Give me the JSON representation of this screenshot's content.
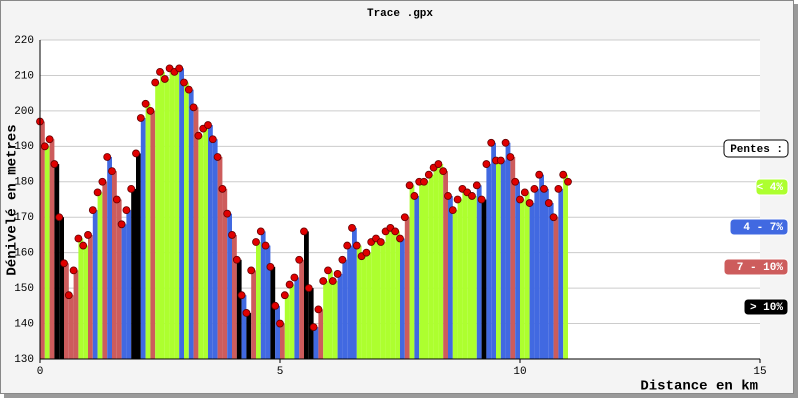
{
  "chart_data": {
    "type": "elevation-profile",
    "title": "Trace .gpx",
    "y_label": "Dénivelé en metres",
    "x_label": "Distance en km",
    "xlim": [
      0,
      15
    ],
    "xticks": [
      0,
      5,
      10,
      15
    ],
    "ylim": [
      130,
      220
    ],
    "yticks": [
      130,
      140,
      150,
      160,
      170,
      180,
      190,
      200,
      210,
      220
    ],
    "grid": true,
    "point_color": "#e00000",
    "legend": {
      "title": "Pentes :",
      "items": [
        {
          "label": "< 4%",
          "color": "#adff2f"
        },
        {
          "label": "4 - 7%",
          "color": "#4169e1"
        },
        {
          "label": "7 - 10%",
          "color": "#cd5c5c"
        },
        {
          "label": "> 10%",
          "color": "#000000"
        }
      ]
    },
    "x": [
      0,
      0.1,
      0.2,
      0.3,
      0.4,
      0.5,
      0.6,
      0.7,
      0.8,
      0.9,
      1,
      1.1,
      1.2,
      1.3,
      1.4,
      1.5,
      1.6,
      1.7,
      1.8,
      1.9,
      2,
      2.1,
      2.2,
      2.3,
      2.4,
      2.5,
      2.6,
      2.7,
      2.8,
      2.9,
      3,
      3.1,
      3.2,
      3.3,
      3.4,
      3.5,
      3.6,
      3.7,
      3.8,
      3.9,
      4,
      4.1,
      4.2,
      4.3,
      4.4,
      4.5,
      4.6,
      4.7,
      4.8,
      4.9,
      5,
      5.1,
      5.2,
      5.3,
      5.4,
      5.5,
      5.6,
      5.7,
      5.8,
      5.9,
      6,
      6.1,
      6.2,
      6.3,
      6.4,
      6.5,
      6.6,
      6.7,
      6.8,
      6.9,
      7,
      7.1,
      7.2,
      7.3,
      7.4,
      7.5,
      7.6,
      7.7,
      7.8,
      7.9,
      8,
      8.1,
      8.2,
      8.3,
      8.4,
      8.5,
      8.6,
      8.7,
      8.8,
      8.9,
      9,
      9.1,
      9.2,
      9.3,
      9.4,
      9.5,
      9.6,
      9.7,
      9.8,
      9.9,
      10,
      10.1,
      10.2,
      10.3,
      10.4,
      10.5,
      10.6,
      10.7,
      10.8,
      10.9,
      11
    ],
    "values": [
      197,
      190,
      192,
      185,
      170,
      157,
      148,
      155,
      164,
      162,
      165,
      172,
      177,
      180,
      187,
      183,
      175,
      168,
      172,
      178,
      188,
      198,
      202,
      200,
      208,
      211,
      209,
      212,
      211,
      212,
      208,
      206,
      201,
      193,
      195,
      196,
      192,
      187,
      178,
      171,
      165,
      158,
      148,
      143,
      155,
      163,
      166,
      162,
      156,
      145,
      140,
      148,
      151,
      153,
      158,
      166,
      150,
      139,
      144,
      152,
      155,
      152,
      154,
      158,
      162,
      167,
      162,
      159,
      160,
      163,
      164,
      163,
      166,
      167,
      166,
      164,
      170,
      179,
      176,
      180,
      180,
      182,
      184,
      185,
      183,
      176,
      172,
      175,
      178,
      177,
      176,
      179,
      175,
      185,
      191,
      186,
      186,
      191,
      187,
      180,
      175,
      177,
      174,
      178,
      182,
      178,
      174,
      170,
      178,
      182,
      180
    ],
    "point_colors": [
      "#cd5c5c",
      "#adff2f",
      "#cd5c5c",
      "#000000",
      "#000000",
      "#cd5c5c",
      "#cd5c5c",
      "#cd5c5c",
      "#adff2f",
      "#adff2f",
      "#cd5c5c",
      "#4169e1",
      "#adff2f",
      "#cd5c5c",
      "#4169e1",
      "#cd5c5c",
      "#cd5c5c",
      "#4169e1",
      "#4169e1",
      "#000000",
      "#000000",
      "#4169e1",
      "#adff2f",
      "#cd5c5c",
      "#adff2f",
      "#adff2f",
      "#adff2f",
      "#adff2f",
      "#adff2f",
      "#4169e1",
      "#adff2f",
      "#4169e1",
      "#cd5c5c",
      "#adff2f",
      "#adff2f",
      "#4169e1",
      "#4169e1",
      "#cd5c5c",
      "#cd5c5c",
      "#4169e1",
      "#cd5c5c",
      "#000000",
      "#4169e1",
      "#000000",
      "#cd5c5c",
      "#adff2f",
      "#4169e1",
      "#4169e1",
      "#000000",
      "#4169e1",
      "#cd5c5c",
      "#adff2f",
      "#adff2f",
      "#4169e1",
      "#cd5c5c",
      "#000000",
      "#000000",
      "#4169e1",
      "#cd5c5c",
      "#adff2f",
      "#adff2f",
      "#adff2f",
      "#4169e1",
      "#4169e1",
      "#4169e1",
      "#4169e1",
      "#adff2f",
      "#adff2f",
      "#adff2f",
      "#adff2f",
      "#adff2f",
      "#adff2f",
      "#adff2f",
      "#adff2f",
      "#adff2f",
      "#4169e1",
      "#cd5c5c",
      "#adff2f",
      "#4169e1",
      "#adff2f",
      "#adff2f",
      "#adff2f",
      "#adff2f",
      "#adff2f",
      "#cd5c5c",
      "#4169e1",
      "#adff2f",
      "#adff2f",
      "#adff2f",
      "#adff2f",
      "#adff2f",
      "#4169e1",
      "#000000",
      "#4169e1",
      "#4169e1",
      "#adff2f",
      "#4169e1",
      "#4169e1",
      "#cd5c5c",
      "#4169e1",
      "#adff2f",
      "#adff2f",
      "#4169e1",
      "#4169e1",
      "#4169e1",
      "#4169e1",
      "#4169e1",
      "#cd5c5c",
      "#4169e1",
      "#adff2f",
      "#adff2f"
    ]
  }
}
